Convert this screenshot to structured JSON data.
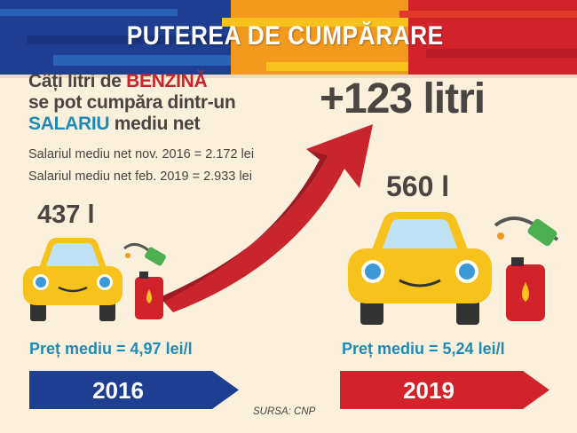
{
  "header": {
    "title": "PUTEREA DE CUMPĂRARE"
  },
  "intro": {
    "line1_prefix": "Câți litri de ",
    "line1_highlight": "BENZINĂ",
    "line2": "se pot cumpăra dintr-un",
    "line3_highlight": "SALARIU",
    "line3_suffix": " mediu net"
  },
  "salaries": [
    "Salariul mediu net nov. 2016 = 2.172 lei",
    "Salariul mediu net feb. 2019 = 2.933 lei"
  ],
  "gain": "+123 litri",
  "years": [
    {
      "year": "2016",
      "liters": "437 l",
      "price": "Preț mediu = 4,97 lei/l",
      "color": "#1e3f91"
    },
    {
      "year": "2019",
      "liters": "560 l",
      "price": "Preț mediu = 5,24 lei/l",
      "color": "#d2232a"
    }
  ],
  "source": "SURSA: CNP",
  "colors": {
    "text": "#4a4443",
    "accent_red": "#c9252c",
    "accent_blue": "#1f8ab5",
    "car": "#f7c21b",
    "background": "#fbf0dc"
  }
}
